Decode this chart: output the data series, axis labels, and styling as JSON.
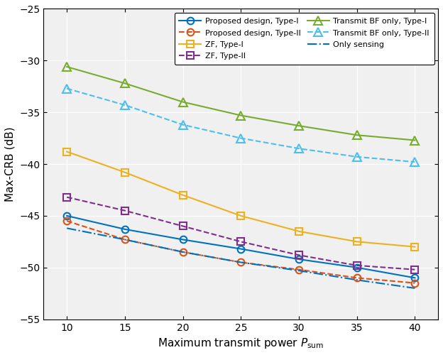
{
  "x": [
    10,
    15,
    20,
    25,
    30,
    35,
    40
  ],
  "proposed_type1": [
    -45.0,
    -46.3,
    -47.3,
    -48.2,
    -49.2,
    -50.0,
    -51.0
  ],
  "proposed_type2": [
    -45.5,
    -47.3,
    -48.5,
    -49.5,
    -50.2,
    -51.0,
    -51.5
  ],
  "zf_type1": [
    -38.8,
    -40.8,
    -43.0,
    -45.0,
    -46.5,
    -47.5,
    -48.0
  ],
  "zf_type2": [
    -43.2,
    -44.5,
    -46.0,
    -47.5,
    -48.8,
    -49.8,
    -50.2
  ],
  "transmit_bf_type1": [
    -30.6,
    -32.2,
    -34.0,
    -35.3,
    -36.3,
    -37.2,
    -37.7
  ],
  "transmit_bf_type2": [
    -32.7,
    -34.3,
    -36.2,
    -37.5,
    -38.5,
    -39.3,
    -39.8
  ],
  "only_sensing": [
    -46.2,
    -47.3,
    -48.5,
    -49.5,
    -50.3,
    -51.2,
    -52.0
  ],
  "color_proposed1": "#0072BD",
  "color_proposed2": "#D95319",
  "color_zf1": "#EDB120",
  "color_zf2": "#7E2F8E",
  "color_transmit1": "#77AC30",
  "color_transmit2": "#4DBEEE",
  "color_sensing": "#0072BD",
  "xlabel": "Maximum transmit power $P_{\\mathrm{sum}}$",
  "ylabel": "Max-CRB (dB)",
  "xlim": [
    8,
    42
  ],
  "ylim": [
    -55,
    -25
  ],
  "xticks": [
    10,
    15,
    20,
    25,
    30,
    35,
    40
  ],
  "yticks": [
    -25,
    -30,
    -35,
    -40,
    -45,
    -50,
    -55
  ],
  "legend_proposed1": "Proposed design, Type-I",
  "legend_proposed2": "Proposed design, Type-II",
  "legend_zf1": "ZF, Type-I",
  "legend_zf2": "ZF, Type-II",
  "legend_transmit1": "Transmit BF only, Type-I",
  "legend_transmit2": "Transmit BF only, Type-II",
  "legend_sensing": "Only sensing",
  "bg_color": "#F0F0F0",
  "fig_bg": "#FFFFFF"
}
